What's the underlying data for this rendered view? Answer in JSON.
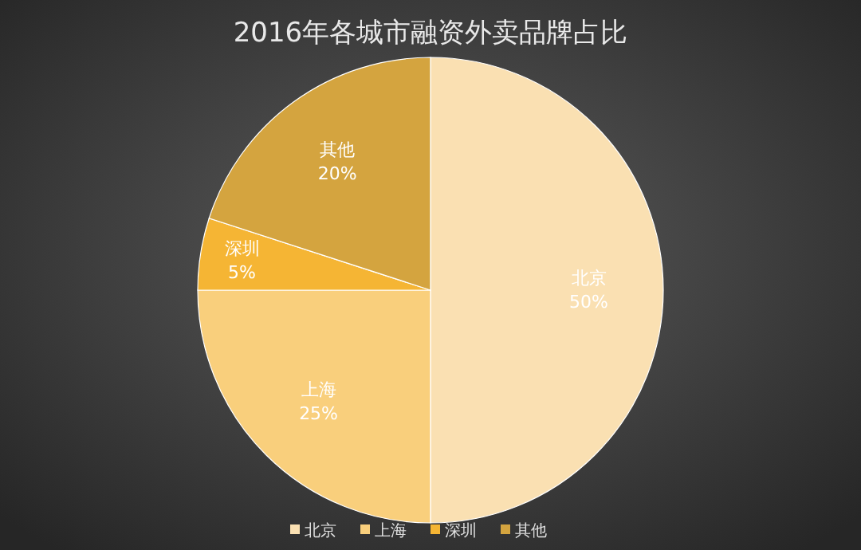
{
  "chart_data": {
    "type": "pie",
    "title": "2016年各城市融资外卖品牌占比",
    "categories": [
      "北京",
      "上海",
      "深圳",
      "其他"
    ],
    "values": [
      50,
      25,
      5,
      20
    ],
    "colors": [
      "#fae0b2",
      "#f9cf7c",
      "#f5b534",
      "#d4a43f"
    ],
    "value_labels": [
      "50%",
      "25%",
      "5%",
      "20%"
    ],
    "legend": "bottom"
  }
}
